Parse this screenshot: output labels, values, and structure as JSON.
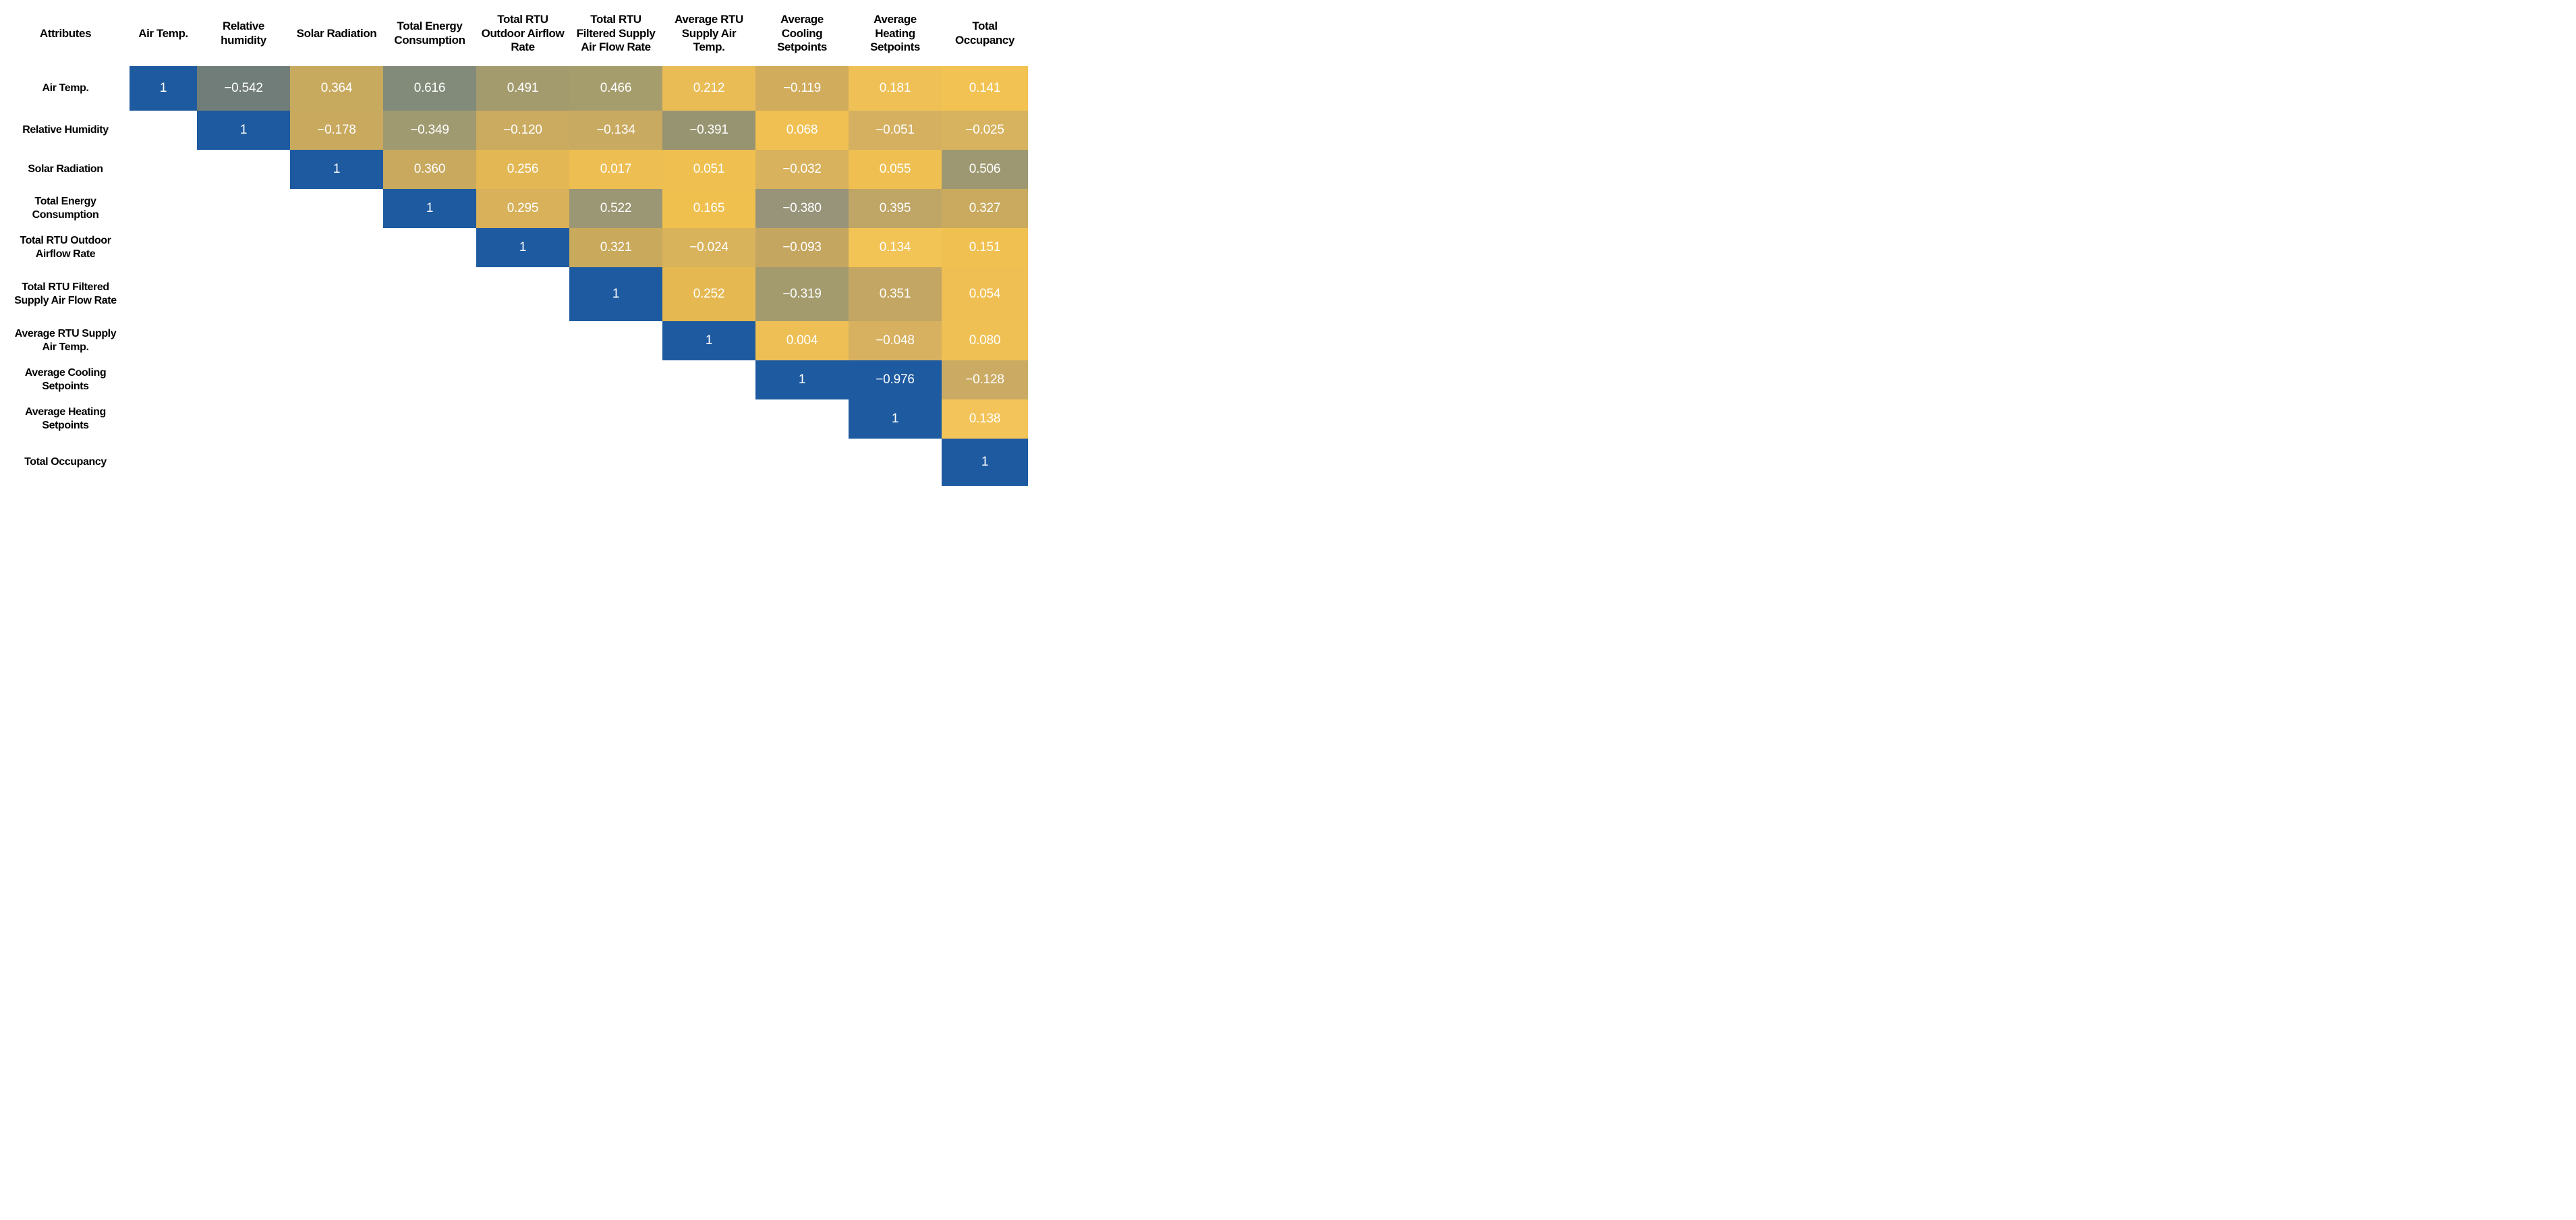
{
  "chart_data": {
    "type": "heatmap",
    "corner_label": "Attributes",
    "columns": [
      "Air Temp.",
      "Relative humidity",
      "Solar Radiation",
      "Total Energy Consumption",
      "Total RTU Outdoor Airflow Rate",
      "Total RTU Filtered Supply Air Flow Rate",
      "Average RTU Supply Air Temp.",
      "Average Cooling Setpoints",
      "Average Heating Setpoints",
      "Total Occupancy"
    ],
    "rows": [
      "Air Temp.",
      "Relative Humidity",
      "Solar Radiation",
      "Total Energy Consumption",
      "Total RTU Outdoor Airflow Rate",
      "Total RTU Filtered Supply Air Flow Rate",
      "Average RTU Supply Air Temp.",
      "Average Cooling Setpoints",
      "Average Heating Setpoints",
      "Total Occupancy"
    ],
    "values": [
      [
        1,
        -0.542,
        0.364,
        0.616,
        0.491,
        0.466,
        0.212,
        -0.119,
        0.181,
        0.141
      ],
      [
        null,
        1,
        -0.178,
        -0.349,
        -0.12,
        -0.134,
        -0.391,
        0.068,
        -0.051,
        -0.025
      ],
      [
        null,
        null,
        1,
        0.36,
        0.256,
        0.017,
        0.051,
        -0.032,
        0.055,
        0.506
      ],
      [
        null,
        null,
        null,
        1,
        0.295,
        0.522,
        0.165,
        -0.38,
        0.395,
        0.327
      ],
      [
        null,
        null,
        null,
        null,
        1,
        0.321,
        -0.024,
        -0.093,
        0.134,
        0.151
      ],
      [
        null,
        null,
        null,
        null,
        null,
        1,
        0.252,
        -0.319,
        0.351,
        0.054
      ],
      [
        null,
        null,
        null,
        null,
        null,
        null,
        1,
        0.004,
        -0.048,
        0.08
      ],
      [
        null,
        null,
        null,
        null,
        null,
        null,
        null,
        1,
        -0.976,
        -0.128
      ],
      [
        null,
        null,
        null,
        null,
        null,
        null,
        null,
        null,
        1,
        0.138
      ],
      [
        null,
        null,
        null,
        null,
        null,
        null,
        null,
        null,
        null,
        1
      ]
    ],
    "display": [
      [
        "1",
        "−0.542",
        "0.364",
        "0.616",
        "0.491",
        "0.466",
        "0.212",
        "−0.119",
        "0.181",
        "0.141"
      ],
      [
        null,
        "1",
        "−0.178",
        "−0.349",
        "−0.120",
        "−0.134",
        "−0.391",
        "0.068",
        "−0.051",
        "−0.025"
      ],
      [
        null,
        null,
        "1",
        "0.360",
        "0.256",
        "0.017",
        "0.051",
        "−0.032",
        "0.055",
        "0.506"
      ],
      [
        null,
        null,
        null,
        "1",
        "0.295",
        "0.522",
        "0.165",
        "−0.380",
        "0.395",
        "0.327"
      ],
      [
        null,
        null,
        null,
        null,
        "1",
        "0.321",
        "−0.024",
        "−0.093",
        "0.134",
        "0.151"
      ],
      [
        null,
        null,
        null,
        null,
        null,
        "1",
        "0.252",
        "−0.319",
        "0.351",
        "0.054"
      ],
      [
        null,
        null,
        null,
        null,
        null,
        null,
        "1",
        "0.004",
        "−0.048",
        "0.080"
      ],
      [
        null,
        null,
        null,
        null,
        null,
        null,
        null,
        "1",
        "−0.976",
        "−0.128"
      ],
      [
        null,
        null,
        null,
        null,
        null,
        null,
        null,
        null,
        "1",
        "0.138"
      ],
      [
        null,
        null,
        null,
        null,
        null,
        null,
        null,
        null,
        null,
        "1"
      ]
    ],
    "cell_colors": [
      [
        "#1E5AA0",
        "#707D78",
        "#C8AA5F",
        "#828B79",
        "#A39B6E",
        "#A69D6D",
        "#E9BC55",
        "#D2AC5D",
        "#EEC055",
        "#F2C353"
      ],
      [
        null,
        "#1E5AA0",
        "#C9A95E",
        "#A09A71",
        "#CAAB60",
        "#C9AA61",
        "#979471",
        "#F0C052",
        "#D5B061",
        "#D7B25F"
      ],
      [
        null,
        null,
        "#1E5AA0",
        "#C8A95E",
        "#E3B754",
        "#EDBE51",
        "#EFBF50",
        "#D8B25C",
        "#EFBF52",
        "#9D9871"
      ],
      [
        null,
        null,
        null,
        "#1E5AA0",
        "#D8B15A",
        "#9B9673",
        "#F0C04F",
        "#98947A",
        "#BFA566",
        "#CAAA5E"
      ],
      [
        null,
        null,
        null,
        null,
        "#1E5AA0",
        "#C9A95C",
        "#D9B35C",
        "#C5A660",
        "#F2C355",
        "#F0C151"
      ],
      [
        null,
        null,
        null,
        null,
        null,
        "#1E5AA0",
        "#E5B851",
        "#A39B6E",
        "#C3A663",
        "#EFBF53"
      ],
      [
        null,
        null,
        null,
        null,
        null,
        null,
        "#1E5AA0",
        "#EDBF55",
        "#D7B160",
        "#EFC155"
      ],
      [
        null,
        null,
        null,
        null,
        null,
        null,
        null,
        "#1E5AA0",
        "#1E5AA0",
        "#CBAB64"
      ],
      [
        null,
        null,
        null,
        null,
        null,
        null,
        null,
        null,
        "#1E5AA0",
        "#F3C45A"
      ],
      [
        null,
        null,
        null,
        null,
        null,
        null,
        null,
        null,
        null,
        "#1E5AA0"
      ]
    ],
    "diagonal_color": "#1E5AA0",
    "value_text_color": "#ffffff",
    "empty_color": "#ffffff",
    "legend_position": "none",
    "grid": false
  }
}
